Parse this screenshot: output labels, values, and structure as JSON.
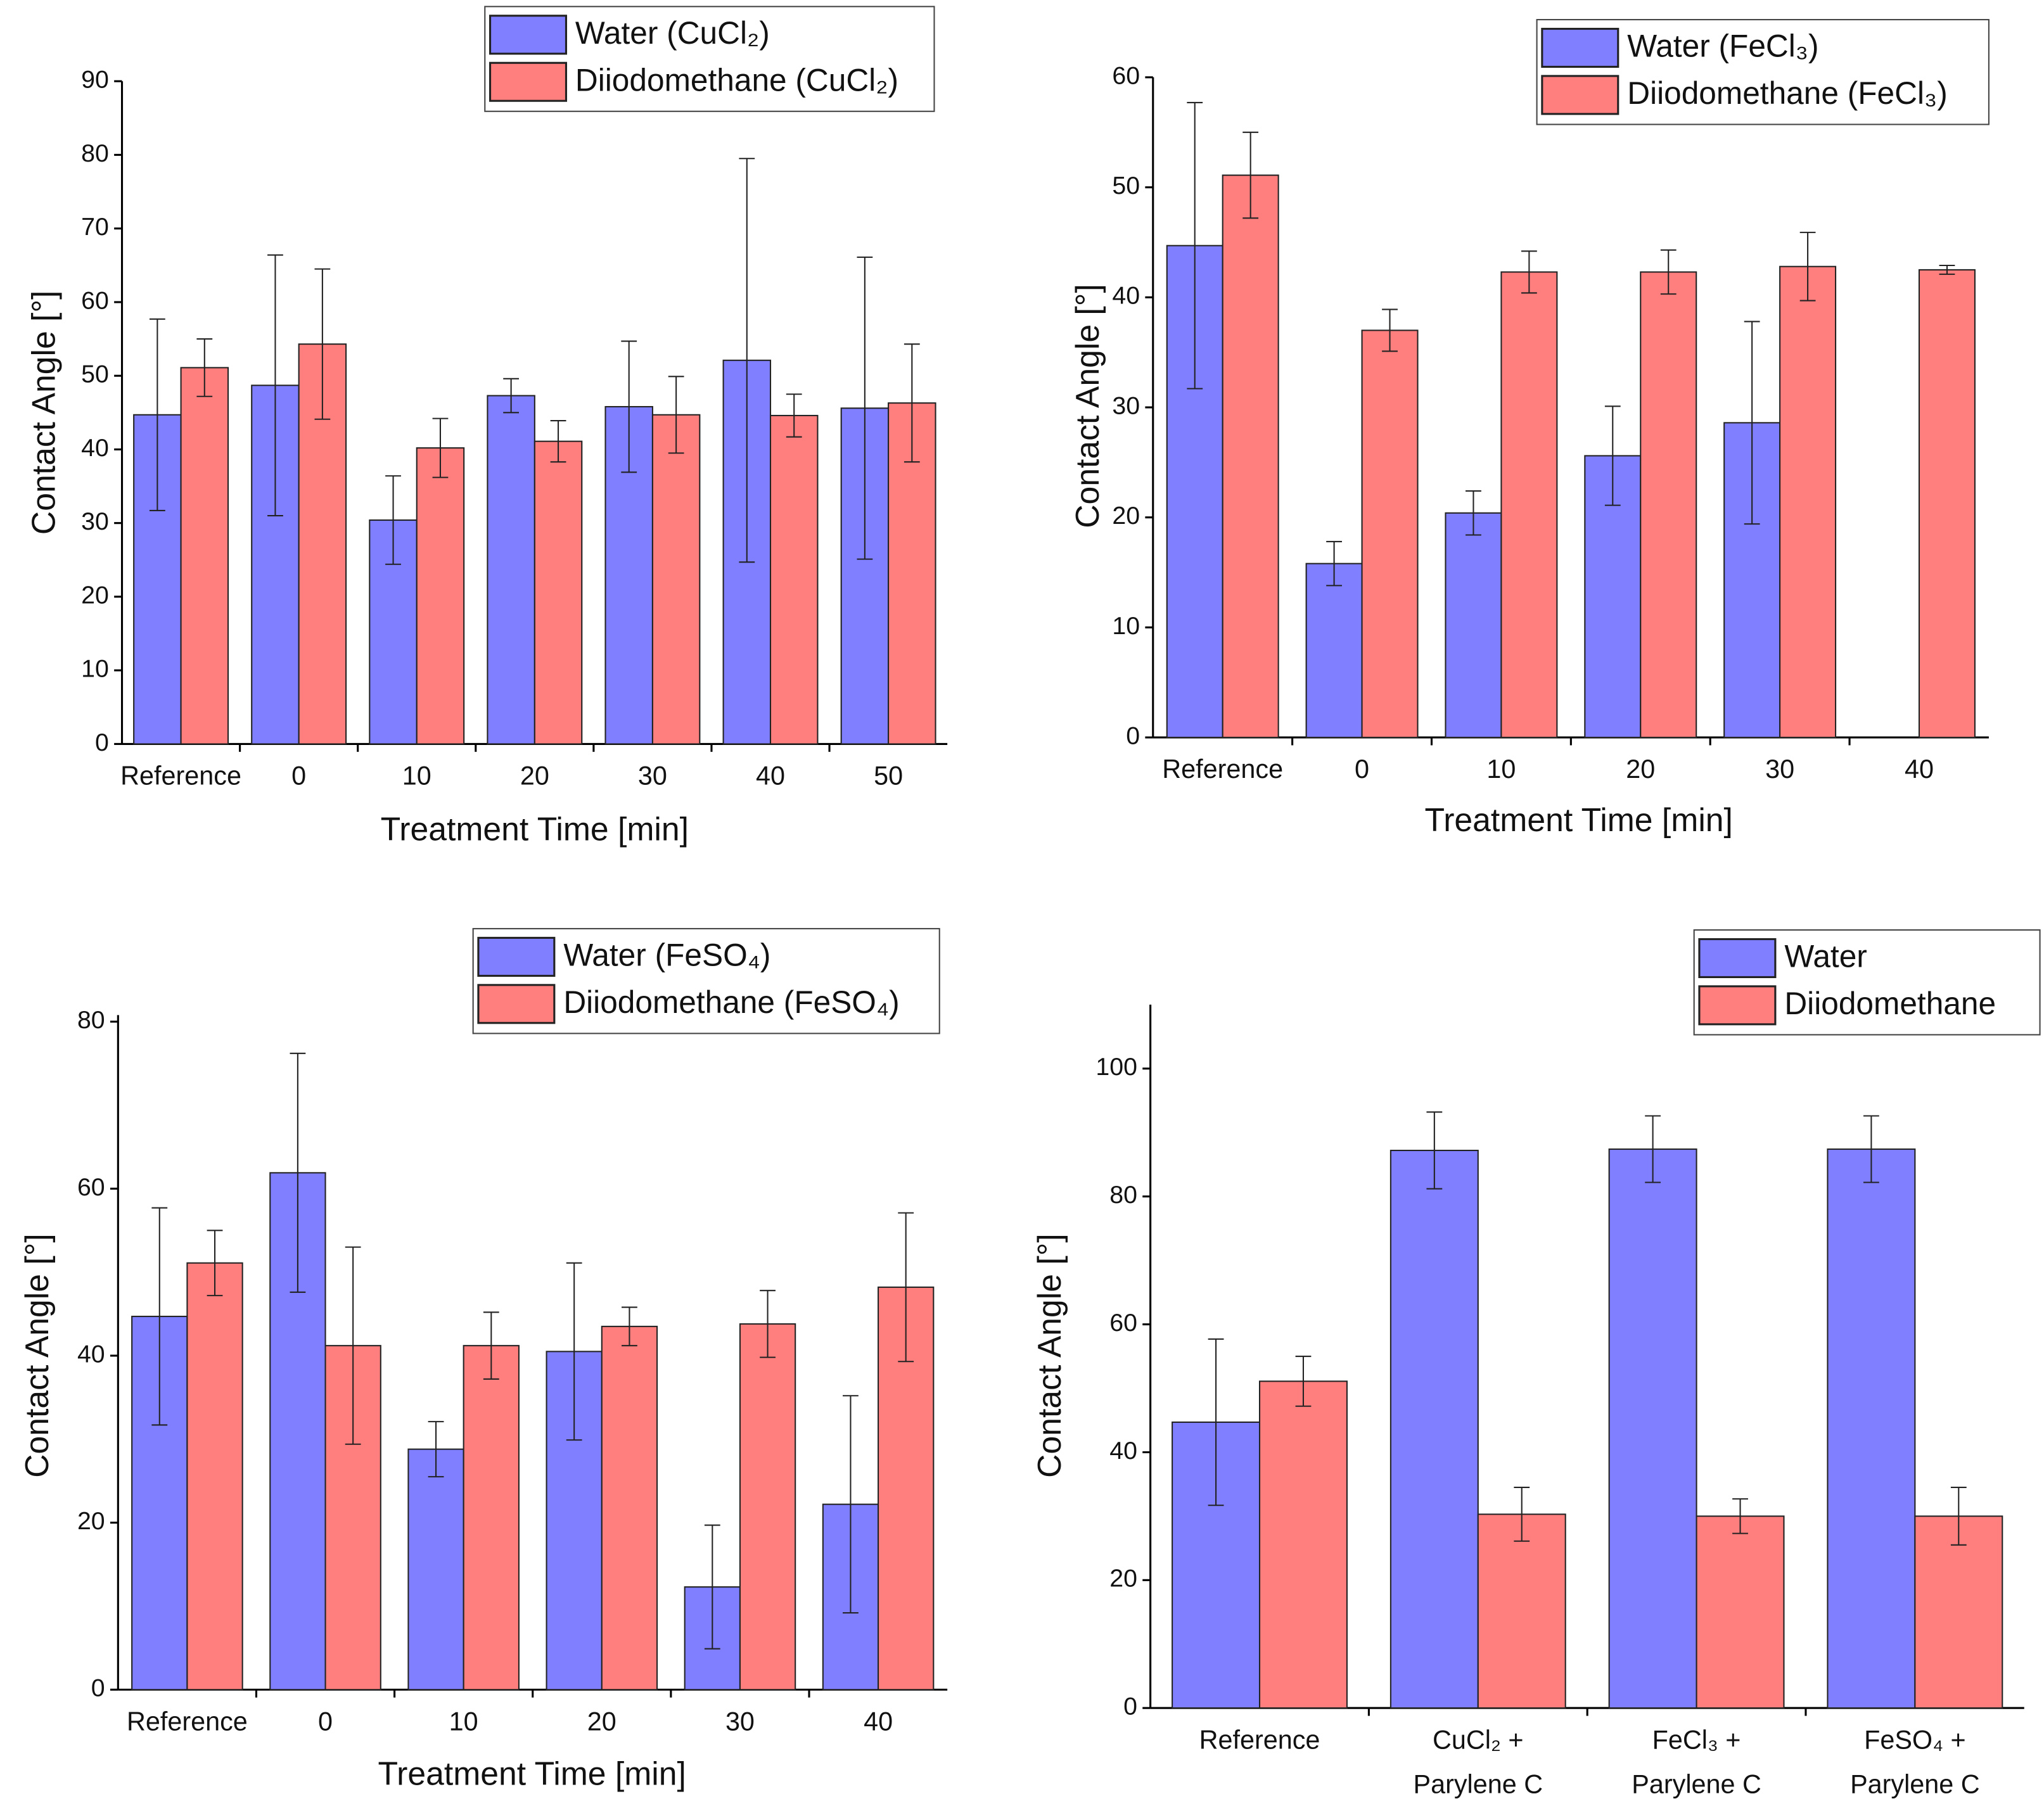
{
  "chart_data": [
    {
      "type": "bar",
      "x_label": "Treatment Time [min]",
      "y_label": "Contact Angle [°]",
      "categories": [
        "Reference",
        "0",
        "10",
        "20",
        "30",
        "40",
        "50"
      ],
      "ylim": [
        0,
        90
      ],
      "yticks": [
        0,
        10,
        20,
        30,
        40,
        50,
        60,
        70,
        80,
        90
      ],
      "series": [
        {
          "name": "Water (CuCl₂)",
          "color": "#7f7fff",
          "values": [
            44.7,
            48.7,
            30.4,
            47.3,
            45.8,
            52.1,
            45.6
          ],
          "errors": [
            13,
            17.7,
            6,
            2.3,
            8.9,
            27.4,
            20.5
          ]
        },
        {
          "name": "Diiodomethane (CuCl₂)",
          "color": "#ff7f7f",
          "values": [
            51.1,
            54.3,
            40.2,
            41.1,
            44.7,
            44.6,
            46.3
          ],
          "errors": [
            3.9,
            10.2,
            4,
            2.8,
            5.2,
            2.9,
            8
          ]
        }
      ]
    },
    {
      "type": "bar",
      "x_label": "Treatment Time [min]",
      "y_label": "Contact Angle [°]",
      "categories": [
        "Reference",
        "0",
        "10",
        "20",
        "30",
        "40"
      ],
      "ylim": [
        0,
        60
      ],
      "yticks": [
        0,
        10,
        20,
        30,
        40,
        50,
        60
      ],
      "series": [
        {
          "name": "Water (FeCl₃)",
          "color": "#7f7fff",
          "values": [
            44.7,
            15.8,
            20.4,
            25.6,
            28.6,
            null
          ],
          "errors": [
            13,
            2,
            2,
            4.5,
            9.2,
            null
          ]
        },
        {
          "name": "Diiodomethane (FeCl₃)",
          "color": "#ff7f7f",
          "values": [
            51.1,
            37,
            42.3,
            42.3,
            42.8,
            42.5
          ],
          "errors": [
            3.9,
            1.9,
            1.9,
            2,
            3.1,
            0.4
          ]
        }
      ]
    },
    {
      "type": "bar",
      "x_label": "Treatment Time [min]",
      "y_label": "Contact Angle [°]",
      "categories": [
        "Reference",
        "0",
        "10",
        "20",
        "30",
        "40"
      ],
      "ylim": [
        0,
        80
      ],
      "yticks": [
        0,
        20,
        40,
        60,
        80
      ],
      "series": [
        {
          "name": "Water (FeSO₄)",
          "color": "#7f7fff",
          "values": [
            44.7,
            61.9,
            28.8,
            40.5,
            12.3,
            22.2
          ],
          "errors": [
            13,
            14.3,
            3.3,
            10.6,
            7.4,
            13
          ]
        },
        {
          "name": "Diiodomethane (FeSO₄)",
          "color": "#ff7f7f",
          "values": [
            51.1,
            41.2,
            41.2,
            43.5,
            43.8,
            48.2
          ],
          "errors": [
            3.9,
            11.8,
            4,
            2.3,
            4,
            8.9
          ]
        }
      ]
    },
    {
      "type": "bar",
      "y_label": "Contact Angle [°]",
      "categories": [
        "Reference",
        "CuCl₂ +\nParylene C",
        "FeCl₃ +\nParylene C",
        "FeSO₄ +\nParylene C"
      ],
      "ylim": [
        0,
        110
      ],
      "yticks": [
        0,
        20,
        40,
        60,
        80,
        100
      ],
      "series": [
        {
          "name": "Water",
          "color": "#7f7fff",
          "values": [
            44.7,
            87.2,
            87.4,
            87.4
          ],
          "errors": [
            13,
            6,
            5.2,
            5.2
          ]
        },
        {
          "name": "Diiodomethane",
          "color": "#ff7f7f",
          "values": [
            51.1,
            30.3,
            30,
            30
          ],
          "errors": [
            3.9,
            4.2,
            2.7,
            4.5
          ]
        }
      ]
    }
  ]
}
